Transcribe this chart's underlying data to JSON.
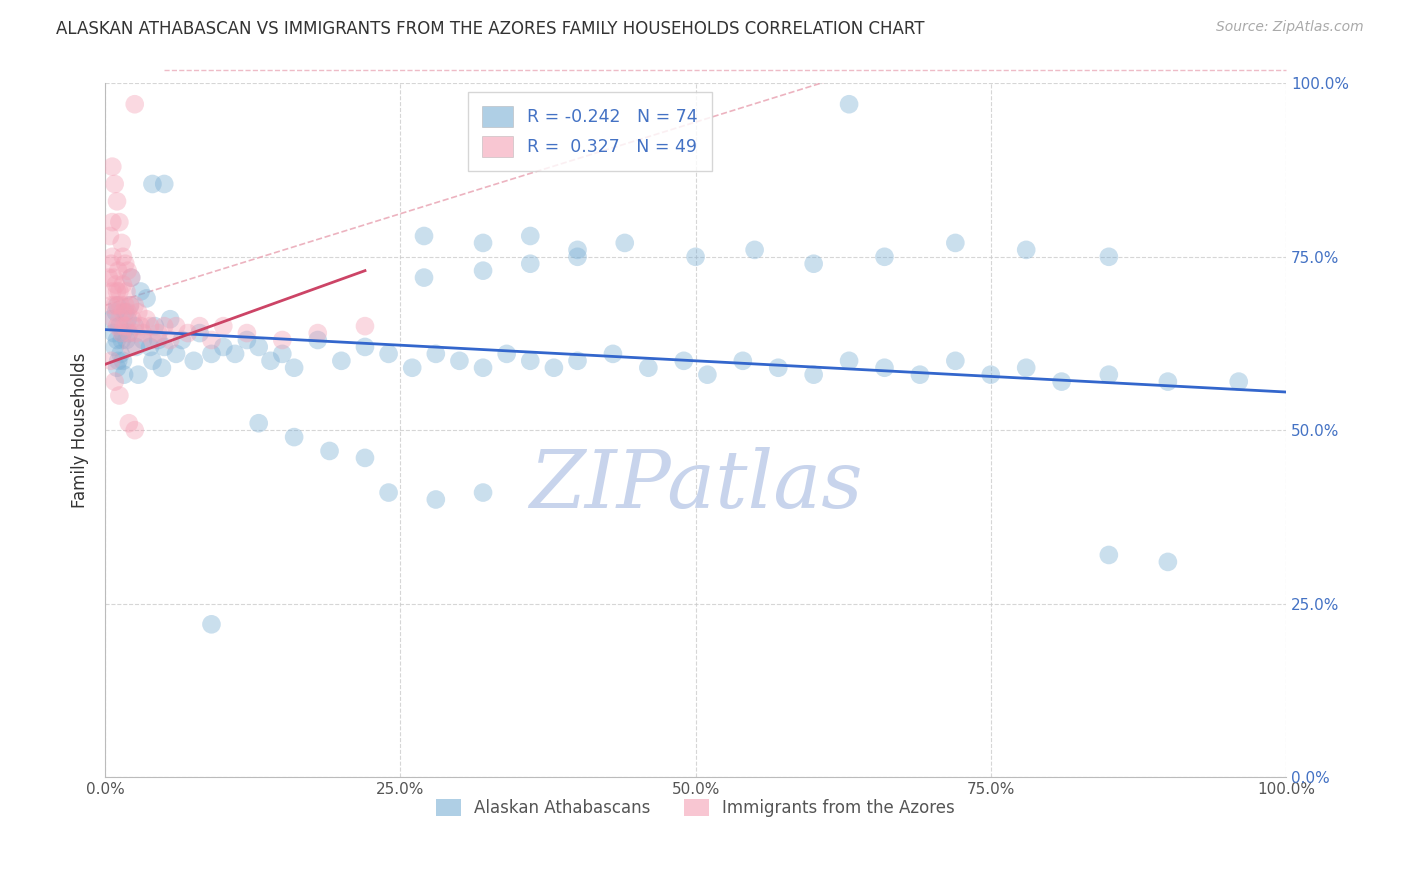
{
  "title": "ALASKAN ATHABASCAN VS IMMIGRANTS FROM THE AZORES FAMILY HOUSEHOLDS CORRELATION CHART",
  "source_text": "Source: ZipAtlas.com",
  "ylabel": "Family Households",
  "watermark": "ZIPatlas",
  "legend_top": [
    {
      "label": "R = -0.242   N = 74",
      "color": "#a8c4e0"
    },
    {
      "label": "R =  0.327   N = 49",
      "color": "#f0a0b0"
    }
  ],
  "legend_bottom": [
    {
      "label": "Alaskan Athabascans",
      "color": "#a8c4e0"
    },
    {
      "label": "Immigrants from the Azores",
      "color": "#f0a0b0"
    }
  ],
  "blue_color": "#7bafd4",
  "pink_color": "#f4a0b5",
  "blue_line_color": "#3366cc",
  "pink_line_color": "#cc4466",
  "diag_line_color": "#e8a0b0",
  "grid_color": "#cccccc",
  "watermark_color": "#c8d4ec",
  "title_color": "#333333",
  "ytick_labels_right": [
    "100.0%",
    "75.0%",
    "50.0%",
    "25.0%"
  ],
  "ytick_vals": [
    1.0,
    0.75,
    0.5,
    0.25,
    0.0
  ],
  "xtick_vals": [
    0.0,
    0.25,
    0.5,
    0.75,
    1.0
  ],
  "blue_scatter_x": [
    0.005,
    0.007,
    0.008,
    0.009,
    0.01,
    0.01,
    0.01,
    0.011,
    0.012,
    0.013,
    0.014,
    0.015,
    0.015,
    0.016,
    0.017,
    0.018,
    0.019,
    0.02,
    0.021,
    0.022,
    0.025,
    0.026,
    0.028,
    0.03,
    0.032,
    0.035,
    0.038,
    0.04,
    0.042,
    0.045,
    0.048,
    0.05,
    0.055,
    0.06,
    0.065,
    0.075,
    0.08,
    0.09,
    0.1,
    0.11,
    0.12,
    0.13,
    0.14,
    0.15,
    0.16,
    0.18,
    0.2,
    0.22,
    0.24,
    0.26,
    0.28,
    0.3,
    0.32,
    0.34,
    0.36,
    0.38,
    0.4,
    0.43,
    0.46,
    0.49,
    0.51,
    0.54,
    0.57,
    0.6,
    0.63,
    0.66,
    0.69,
    0.72,
    0.75,
    0.78,
    0.81,
    0.85,
    0.9,
    0.96
  ],
  "blue_scatter_y": [
    0.66,
    0.64,
    0.62,
    0.67,
    0.68,
    0.63,
    0.59,
    0.6,
    0.65,
    0.61,
    0.63,
    0.64,
    0.6,
    0.58,
    0.67,
    0.63,
    0.66,
    0.64,
    0.68,
    0.72,
    0.65,
    0.62,
    0.58,
    0.7,
    0.63,
    0.69,
    0.62,
    0.6,
    0.65,
    0.63,
    0.59,
    0.62,
    0.66,
    0.61,
    0.63,
    0.6,
    0.64,
    0.61,
    0.62,
    0.61,
    0.63,
    0.62,
    0.6,
    0.61,
    0.59,
    0.63,
    0.6,
    0.62,
    0.61,
    0.59,
    0.61,
    0.6,
    0.59,
    0.61,
    0.6,
    0.59,
    0.6,
    0.61,
    0.59,
    0.6,
    0.58,
    0.6,
    0.59,
    0.58,
    0.6,
    0.59,
    0.58,
    0.6,
    0.58,
    0.59,
    0.57,
    0.58,
    0.57,
    0.57
  ],
  "blue_scatter_y_outliers": [
    0.97,
    0.855,
    0.855,
    0.78,
    0.77,
    0.78,
    0.76,
    0.77,
    0.75,
    0.76,
    0.74,
    0.75,
    0.77,
    0.76,
    0.75,
    0.72,
    0.73,
    0.74,
    0.75,
    0.51,
    0.49,
    0.47,
    0.46,
    0.41,
    0.4,
    0.41,
    0.32,
    0.31,
    0.22
  ],
  "blue_scatter_x_outliers": [
    0.63,
    0.04,
    0.05,
    0.27,
    0.32,
    0.36,
    0.4,
    0.44,
    0.5,
    0.55,
    0.6,
    0.66,
    0.72,
    0.78,
    0.85,
    0.27,
    0.32,
    0.36,
    0.4,
    0.13,
    0.16,
    0.19,
    0.22,
    0.24,
    0.28,
    0.32,
    0.85,
    0.9,
    0.09
  ],
  "pink_scatter_x": [
    0.003,
    0.004,
    0.005,
    0.005,
    0.006,
    0.006,
    0.007,
    0.007,
    0.008,
    0.009,
    0.01,
    0.01,
    0.011,
    0.011,
    0.012,
    0.012,
    0.013,
    0.014,
    0.015,
    0.015,
    0.016,
    0.017,
    0.018,
    0.018,
    0.019,
    0.02,
    0.021,
    0.022,
    0.023,
    0.025,
    0.026,
    0.028,
    0.03,
    0.032,
    0.035,
    0.038,
    0.04,
    0.045,
    0.05,
    0.055,
    0.06,
    0.07,
    0.08,
    0.09,
    0.1,
    0.12,
    0.15,
    0.18,
    0.22
  ],
  "pink_scatter_y": [
    0.72,
    0.78,
    0.68,
    0.74,
    0.7,
    0.75,
    0.66,
    0.72,
    0.68,
    0.71,
    0.65,
    0.7,
    0.68,
    0.73,
    0.66,
    0.7,
    0.68,
    0.64,
    0.67,
    0.71,
    0.65,
    0.68,
    0.7,
    0.65,
    0.67,
    0.64,
    0.68,
    0.62,
    0.66,
    0.68,
    0.64,
    0.67,
    0.65,
    0.64,
    0.66,
    0.65,
    0.63,
    0.64,
    0.65,
    0.63,
    0.65,
    0.64,
    0.65,
    0.63,
    0.65,
    0.64,
    0.63,
    0.64,
    0.65
  ],
  "pink_scatter_y_outliers": [
    0.97,
    0.88,
    0.855,
    0.83,
    0.8,
    0.8,
    0.77,
    0.75,
    0.74,
    0.73,
    0.72,
    0.6,
    0.57,
    0.55,
    0.51,
    0.5
  ],
  "pink_scatter_x_outliers": [
    0.025,
    0.006,
    0.008,
    0.01,
    0.006,
    0.012,
    0.014,
    0.015,
    0.017,
    0.019,
    0.022,
    0.005,
    0.008,
    0.012,
    0.02,
    0.025
  ],
  "blue_line_x": [
    0.0,
    1.0
  ],
  "blue_line_y": [
    0.645,
    0.555
  ],
  "pink_line_x": [
    0.0,
    0.22
  ],
  "pink_line_y": [
    0.595,
    0.73
  ],
  "diag_line_x": [
    0.1,
    1.0
  ],
  "diag_line_y": [
    0.97,
    0.97
  ]
}
